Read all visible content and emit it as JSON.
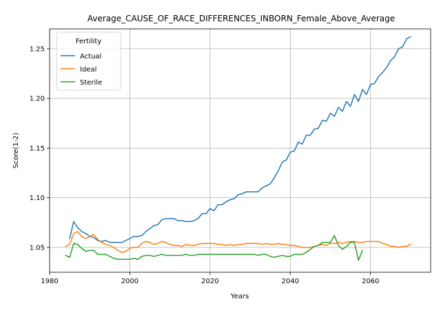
{
  "chart_data": {
    "type": "line",
    "title": "Average_CAUSE_OF_RACE_DIFFERENCES_INBORN_Female_Above_Average",
    "xlabel": "Years",
    "ylabel": "Score(1-2)",
    "xlim": [
      1980,
      2075
    ],
    "ylim": [
      1.025,
      1.27
    ],
    "xticks": [
      1980,
      2000,
      2020,
      2040,
      2060
    ],
    "yticks": [
      1.05,
      1.1,
      1.15,
      1.2,
      1.25
    ],
    "xtick_labels": [
      "1980",
      "2000",
      "2020",
      "2040",
      "2060"
    ],
    "ytick_labels": [
      "1.05",
      "1.10",
      "1.15",
      "1.20",
      "1.25"
    ],
    "grid": true,
    "legend": {
      "title": "Fertility",
      "position": "upper-left"
    },
    "series": [
      {
        "name": "Actual",
        "color": "#1f77b4",
        "points": [
          [
            1985,
            1.059
          ],
          [
            1986,
            1.076
          ],
          [
            1987,
            1.07
          ],
          [
            1988,
            1.066
          ],
          [
            1989,
            1.064
          ],
          [
            1990,
            1.061
          ],
          [
            1991,
            1.06
          ],
          [
            1992,
            1.057
          ],
          [
            1993,
            1.056
          ],
          [
            1994,
            1.057
          ],
          [
            1995,
            1.055
          ],
          [
            1996,
            1.055
          ],
          [
            1997,
            1.055
          ],
          [
            1998,
            1.055
          ],
          [
            1999,
            1.057
          ],
          [
            2000,
            1.059
          ],
          [
            2001,
            1.061
          ],
          [
            2002,
            1.061
          ],
          [
            2003,
            1.062
          ],
          [
            2004,
            1.066
          ],
          [
            2005,
            1.069
          ],
          [
            2006,
            1.072
          ],
          [
            2007,
            1.073
          ],
          [
            2008,
            1.078
          ],
          [
            2009,
            1.079
          ],
          [
            2010,
            1.079
          ],
          [
            2011,
            1.079
          ],
          [
            2012,
            1.077
          ],
          [
            2013,
            1.077
          ],
          [
            2014,
            1.076
          ],
          [
            2015,
            1.076
          ],
          [
            2016,
            1.077
          ],
          [
            2017,
            1.079
          ],
          [
            2018,
            1.084
          ],
          [
            2019,
            1.084
          ],
          [
            2020,
            1.089
          ],
          [
            2021,
            1.087
          ],
          [
            2022,
            1.093
          ],
          [
            2023,
            1.093
          ],
          [
            2024,
            1.096
          ],
          [
            2025,
            1.098
          ],
          [
            2026,
            1.099
          ],
          [
            2027,
            1.103
          ],
          [
            2028,
            1.104
          ],
          [
            2029,
            1.106
          ],
          [
            2030,
            1.106
          ],
          [
            2031,
            1.106
          ],
          [
            2032,
            1.106
          ],
          [
            2033,
            1.11
          ],
          [
            2034,
            1.112
          ],
          [
            2035,
            1.114
          ],
          [
            2036,
            1.12
          ],
          [
            2037,
            1.127
          ],
          [
            2038,
            1.136
          ],
          [
            2039,
            1.138
          ],
          [
            2040,
            1.146
          ],
          [
            2041,
            1.147
          ],
          [
            2042,
            1.156
          ],
          [
            2043,
            1.154
          ],
          [
            2044,
            1.163
          ],
          [
            2045,
            1.163
          ],
          [
            2046,
            1.169
          ],
          [
            2047,
            1.17
          ],
          [
            2048,
            1.178
          ],
          [
            2049,
            1.177
          ],
          [
            2050,
            1.185
          ],
          [
            2051,
            1.182
          ],
          [
            2052,
            1.191
          ],
          [
            2053,
            1.187
          ],
          [
            2054,
            1.197
          ],
          [
            2055,
            1.192
          ],
          [
            2056,
            1.204
          ],
          [
            2057,
            1.197
          ],
          [
            2058,
            1.209
          ],
          [
            2059,
            1.204
          ],
          [
            2060,
            1.214
          ],
          [
            2061,
            1.215
          ],
          [
            2062,
            1.222
          ],
          [
            2063,
            1.226
          ],
          [
            2064,
            1.231
          ],
          [
            2065,
            1.238
          ],
          [
            2066,
            1.242
          ],
          [
            2067,
            1.25
          ],
          [
            2068,
            1.252
          ],
          [
            2069,
            1.26
          ],
          [
            2070,
            1.262
          ]
        ]
      },
      {
        "name": "Ideal",
        "color": "#ff7f0e",
        "points": [
          [
            1984,
            1.051
          ],
          [
            1985,
            1.053
          ],
          [
            1986,
            1.064
          ],
          [
            1987,
            1.066
          ],
          [
            1988,
            1.061
          ],
          [
            1989,
            1.059
          ],
          [
            1990,
            1.061
          ],
          [
            1991,
            1.063
          ],
          [
            1992,
            1.058
          ],
          [
            1993,
            1.055
          ],
          [
            1994,
            1.053
          ],
          [
            1995,
            1.052
          ],
          [
            1996,
            1.05
          ],
          [
            1997,
            1.047
          ],
          [
            1998,
            1.045
          ],
          [
            1999,
            1.046
          ],
          [
            2000,
            1.049
          ],
          [
            2001,
            1.05
          ],
          [
            2002,
            1.05
          ],
          [
            2003,
            1.054
          ],
          [
            2004,
            1.056
          ],
          [
            2005,
            1.055
          ],
          [
            2006,
            1.053
          ],
          [
            2007,
            1.054
          ],
          [
            2008,
            1.056
          ],
          [
            2009,
            1.055
          ],
          [
            2010,
            1.053
          ],
          [
            2011,
            1.052
          ],
          [
            2012,
            1.052
          ],
          [
            2013,
            1.051
          ],
          [
            2014,
            1.053
          ],
          [
            2015,
            1.052
          ],
          [
            2016,
            1.052
          ],
          [
            2017,
            1.053
          ],
          [
            2018,
            1.054
          ],
          [
            2019,
            1.054
          ],
          [
            2020,
            1.054
          ],
          [
            2021,
            1.054
          ],
          [
            2022,
            1.053
          ],
          [
            2023,
            1.053
          ],
          [
            2024,
            1.052
          ],
          [
            2025,
            1.053
          ],
          [
            2026,
            1.052
          ],
          [
            2027,
            1.053
          ],
          [
            2028,
            1.053
          ],
          [
            2029,
            1.054
          ],
          [
            2030,
            1.054
          ],
          [
            2031,
            1.054
          ],
          [
            2032,
            1.054
          ],
          [
            2033,
            1.053
          ],
          [
            2034,
            1.054
          ],
          [
            2035,
            1.053
          ],
          [
            2036,
            1.053
          ],
          [
            2037,
            1.054
          ],
          [
            2038,
            1.053
          ],
          [
            2039,
            1.053
          ],
          [
            2040,
            1.052
          ],
          [
            2041,
            1.052
          ],
          [
            2042,
            1.051
          ],
          [
            2043,
            1.05
          ],
          [
            2044,
            1.05
          ],
          [
            2045,
            1.05
          ],
          [
            2046,
            1.051
          ],
          [
            2047,
            1.052
          ],
          [
            2048,
            1.053
          ],
          [
            2049,
            1.052
          ],
          [
            2050,
            1.054
          ],
          [
            2051,
            1.054
          ],
          [
            2052,
            1.055
          ],
          [
            2053,
            1.054
          ],
          [
            2054,
            1.055
          ],
          [
            2055,
            1.056
          ],
          [
            2056,
            1.056
          ],
          [
            2057,
            1.055
          ],
          [
            2058,
            1.055
          ],
          [
            2059,
            1.056
          ],
          [
            2060,
            1.056
          ],
          [
            2061,
            1.056
          ],
          [
            2062,
            1.056
          ],
          [
            2063,
            1.054
          ],
          [
            2064,
            1.053
          ],
          [
            2065,
            1.051
          ],
          [
            2066,
            1.051
          ],
          [
            2067,
            1.05
          ],
          [
            2068,
            1.051
          ],
          [
            2069,
            1.051
          ],
          [
            2070,
            1.053
          ]
        ]
      },
      {
        "name": "Sterile",
        "color": "#2ca02c",
        "points": [
          [
            1984,
            1.042
          ],
          [
            1985,
            1.04
          ],
          [
            1986,
            1.054
          ],
          [
            1987,
            1.053
          ],
          [
            1988,
            1.049
          ],
          [
            1989,
            1.046
          ],
          [
            1990,
            1.047
          ],
          [
            1991,
            1.047
          ],
          [
            1992,
            1.043
          ],
          [
            1993,
            1.043
          ],
          [
            1994,
            1.043
          ],
          [
            1995,
            1.041
          ],
          [
            1996,
            1.039
          ],
          [
            1997,
            1.038
          ],
          [
            1998,
            1.038
          ],
          [
            1999,
            1.038
          ],
          [
            2000,
            1.038
          ],
          [
            2001,
            1.039
          ],
          [
            2002,
            1.038
          ],
          [
            2003,
            1.041
          ],
          [
            2004,
            1.042
          ],
          [
            2005,
            1.042
          ],
          [
            2006,
            1.041
          ],
          [
            2007,
            1.042
          ],
          [
            2008,
            1.043
          ],
          [
            2009,
            1.042
          ],
          [
            2010,
            1.042
          ],
          [
            2011,
            1.042
          ],
          [
            2012,
            1.042
          ],
          [
            2013,
            1.042
          ],
          [
            2014,
            1.043
          ],
          [
            2015,
            1.042
          ],
          [
            2016,
            1.042
          ],
          [
            2017,
            1.043
          ],
          [
            2018,
            1.043
          ],
          [
            2019,
            1.043
          ],
          [
            2020,
            1.043
          ],
          [
            2021,
            1.043
          ],
          [
            2022,
            1.043
          ],
          [
            2023,
            1.043
          ],
          [
            2024,
            1.043
          ],
          [
            2025,
            1.043
          ],
          [
            2026,
            1.043
          ],
          [
            2027,
            1.043
          ],
          [
            2028,
            1.043
          ],
          [
            2029,
            1.043
          ],
          [
            2030,
            1.043
          ],
          [
            2031,
            1.043
          ],
          [
            2032,
            1.042
          ],
          [
            2033,
            1.043
          ],
          [
            2034,
            1.043
          ],
          [
            2035,
            1.041
          ],
          [
            2036,
            1.04
          ],
          [
            2037,
            1.041
          ],
          [
            2038,
            1.042
          ],
          [
            2039,
            1.041
          ],
          [
            2040,
            1.041
          ],
          [
            2041,
            1.043
          ],
          [
            2042,
            1.043
          ],
          [
            2043,
            1.043
          ],
          [
            2044,
            1.045
          ],
          [
            2045,
            1.048
          ],
          [
            2046,
            1.051
          ],
          [
            2047,
            1.052
          ],
          [
            2048,
            1.055
          ],
          [
            2049,
            1.055
          ],
          [
            2050,
            1.055
          ],
          [
            2051,
            1.062
          ],
          [
            2052,
            1.052
          ],
          [
            2053,
            1.048
          ],
          [
            2054,
            1.051
          ],
          [
            2055,
            1.055
          ],
          [
            2056,
            1.055
          ],
          [
            2057,
            1.037
          ],
          [
            2058,
            1.047
          ]
        ]
      }
    ]
  }
}
